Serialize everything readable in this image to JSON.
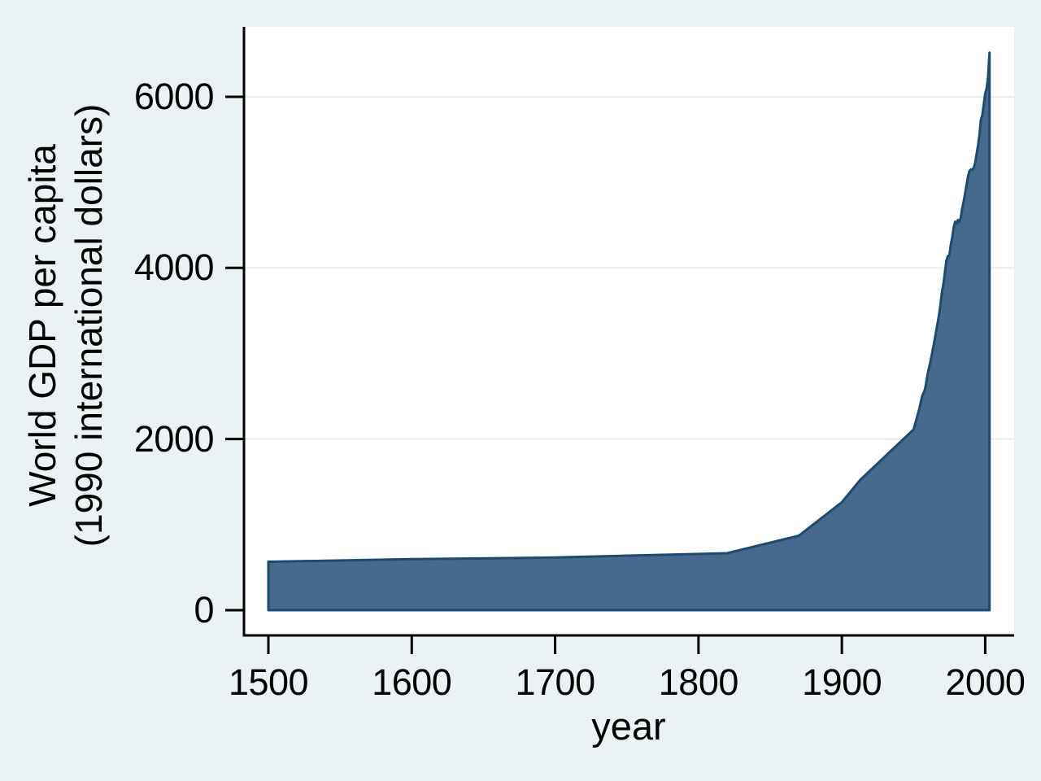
{
  "chart_data": {
    "type": "area",
    "title": "",
    "xlabel": "year",
    "ylabel_lines": [
      "World GDP per capita",
      "(1990 international dollars)"
    ],
    "x_ticks": [
      1500,
      1600,
      1700,
      1800,
      1900,
      2000
    ],
    "y_ticks": [
      0,
      2000,
      4000,
      6000
    ],
    "xlim": [
      1500,
      2003
    ],
    "ylim": [
      0,
      6516
    ],
    "grid": true,
    "legend": "none",
    "series": [
      {
        "name": "world-gdp-per-capita",
        "points": [
          [
            1500,
            566
          ],
          [
            1600,
            596
          ],
          [
            1700,
            615
          ],
          [
            1820,
            666
          ],
          [
            1870,
            870
          ],
          [
            1900,
            1261
          ],
          [
            1913,
            1525
          ],
          [
            1950,
            2111
          ],
          [
            1952,
            2230
          ],
          [
            1954,
            2350
          ],
          [
            1956,
            2500
          ],
          [
            1958,
            2580
          ],
          [
            1960,
            2773
          ],
          [
            1962,
            2920
          ],
          [
            1964,
            3090
          ],
          [
            1966,
            3280
          ],
          [
            1968,
            3470
          ],
          [
            1970,
            3736
          ],
          [
            1971,
            3825
          ],
          [
            1972,
            3970
          ],
          [
            1973,
            4091
          ],
          [
            1974,
            4140
          ],
          [
            1975,
            4140
          ],
          [
            1976,
            4270
          ],
          [
            1977,
            4360
          ],
          [
            1978,
            4470
          ],
          [
            1979,
            4540
          ],
          [
            1980,
            4520
          ],
          [
            1981,
            4560
          ],
          [
            1982,
            4537
          ],
          [
            1983,
            4590
          ],
          [
            1984,
            4700
          ],
          [
            1985,
            4780
          ],
          [
            1986,
            4870
          ],
          [
            1987,
            4970
          ],
          [
            1988,
            5070
          ],
          [
            1989,
            5130
          ],
          [
            1990,
            5150
          ],
          [
            1991,
            5150
          ],
          [
            1992,
            5170
          ],
          [
            1993,
            5230
          ],
          [
            1994,
            5330
          ],
          [
            1995,
            5430
          ],
          [
            1996,
            5560
          ],
          [
            1997,
            5730
          ],
          [
            1998,
            5790
          ],
          [
            1999,
            5910
          ],
          [
            2000,
            6038
          ],
          [
            2001,
            6100
          ],
          [
            2002,
            6230
          ],
          [
            2003,
            6516
          ]
        ]
      }
    ],
    "colors": {
      "page_bg": "#eaf2f3",
      "plot_bg": "#ffffff",
      "grid": "#e4eef1",
      "area_fill": "#46698c",
      "area_stroke": "#1e4a6e",
      "axis": "#000000",
      "text": "#000000"
    }
  }
}
